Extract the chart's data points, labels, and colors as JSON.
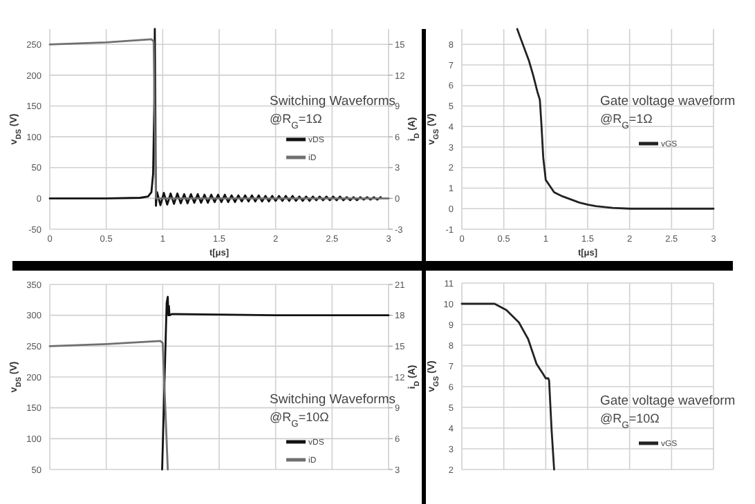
{
  "chart_data": [
    {
      "type": "line",
      "xlabel": "t[μs]",
      "ylabel": "v$_{DS}$ (V)",
      "y2label": "i$_{D}$ (A)",
      "annotations": [
        "Switching Waveforms",
        "@R$_{G}$=1Ω"
      ],
      "xlim": [
        0,
        3
      ],
      "xticks": [
        0,
        0.5,
        1,
        1.5,
        2,
        2.5,
        3
      ],
      "ylim": [
        -50,
        275
      ],
      "yticks": [
        -50,
        0,
        50,
        100,
        150,
        200,
        250
      ],
      "y2lim": [
        -3,
        16.5
      ],
      "y2ticks": [
        -3,
        0,
        3,
        6,
        9,
        12,
        15
      ],
      "grid": true,
      "legend": "right",
      "series": [
        {
          "name": "vDS",
          "color": "#111111",
          "x": [
            0,
            0.5,
            0.8,
            0.87,
            0.9,
            0.915,
            0.925,
            0.93,
            0.94,
            0.95,
            0.98,
            1.01,
            1.04,
            1.07,
            1.1,
            1.13,
            1.16,
            1.19,
            1.22,
            1.25,
            1.28,
            1.31,
            1.34,
            1.37,
            1.4,
            1.43,
            1.46,
            1.49,
            1.52,
            1.55,
            1.58,
            1.61,
            1.64,
            1.67,
            1.7,
            1.73,
            1.76,
            1.79,
            1.82,
            1.85,
            1.88,
            1.91,
            1.94,
            1.97,
            2,
            2.03,
            2.06,
            2.09,
            2.12,
            2.15,
            2.18,
            2.21,
            2.24,
            2.27,
            2.3,
            2.33,
            2.36,
            2.39,
            2.42,
            2.45,
            2.48,
            2.51,
            2.54,
            2.57,
            2.6,
            2.63,
            2.66,
            2.69,
            2.72,
            2.75,
            2.78,
            2.81,
            2.84,
            2.87,
            2.9,
            2.93
          ],
          "values": [
            0,
            0,
            1,
            3,
            10,
            40,
            150,
            275,
            -12,
            10,
            -11,
            9,
            -10,
            8,
            -9,
            8,
            -8,
            7,
            -8,
            7,
            -7,
            7,
            -7,
            6,
            -7,
            6,
            -6,
            6,
            -6,
            6,
            -6,
            5,
            -6,
            5,
            -5,
            5,
            -5,
            5,
            -5,
            5,
            -5,
            4,
            -5,
            4,
            -4,
            4,
            -4,
            4,
            -4,
            4,
            -4,
            3,
            -4,
            3,
            -4,
            3,
            -3,
            3,
            -3,
            3,
            -3,
            3,
            -3,
            3,
            -3,
            2,
            -3,
            2,
            -3,
            2,
            -2,
            2,
            -2,
            2,
            -2,
            2
          ]
        },
        {
          "name": "iD",
          "color": "#707070",
          "axis": "y2",
          "x": [
            0,
            0.5,
            0.9,
            0.92,
            0.93,
            0.94,
            3
          ],
          "values": [
            15,
            15.2,
            15.5,
            15.3,
            7,
            0,
            0
          ]
        }
      ]
    },
    {
      "type": "line",
      "xlabel": "t[μs]",
      "ylabel": "v$_{GS}$ (V)",
      "annotations": [
        "Gate voltage waveform",
        "@R$_{G}$=1Ω"
      ],
      "xlim": [
        0,
        3
      ],
      "xticks": [
        0,
        0.5,
        1,
        1.5,
        2,
        2.5,
        3
      ],
      "ylim": [
        -1,
        8.75
      ],
      "yticks": [
        -1,
        0,
        1,
        2,
        3,
        4,
        5,
        6,
        7,
        8
      ],
      "grid": true,
      "legend": "right",
      "series": [
        {
          "name": "vGS",
          "color": "#222222",
          "x": [
            0.66,
            0.7,
            0.8,
            0.85,
            0.9,
            0.93,
            0.95,
            0.97,
            1,
            1.05,
            1.1,
            1.2,
            1.3,
            1.4,
            1.5,
            1.6,
            1.8,
            2,
            3
          ],
          "values": [
            8.75,
            8.3,
            7.2,
            6.5,
            5.7,
            5.3,
            4,
            2.5,
            1.4,
            1.1,
            0.8,
            0.6,
            0.45,
            0.3,
            0.2,
            0.12,
            0.04,
            0,
            0
          ]
        }
      ]
    },
    {
      "type": "line",
      "ylabel": "v$_{DS}$ (V)",
      "y2label": "i$_{D}$ (A)",
      "annotations": [
        "Switching Waveforms",
        "@R$_{G}$=10Ω"
      ],
      "xlim": [
        0,
        3
      ],
      "xticks": [
        0,
        0.5,
        1,
        1.5,
        2,
        2.5,
        3
      ],
      "tick_labels": "y",
      "ylim": [
        50,
        350
      ],
      "yticks": [
        50,
        100,
        150,
        200,
        250,
        300,
        350
      ],
      "y2lim": [
        3,
        21
      ],
      "y2ticks": [
        3,
        6,
        9,
        12,
        15,
        18,
        21
      ],
      "grid": true,
      "legend": "right",
      "series": [
        {
          "name": "vDS",
          "color": "#111111",
          "x": [
            0.995,
            1.035,
            1.045,
            1.05,
            1.055,
            1.06,
            1.08,
            2,
            3
          ],
          "values": [
            50,
            320,
            330,
            300,
            315,
            300,
            302,
            300,
            300
          ]
        },
        {
          "name": "iD",
          "color": "#707070",
          "axis": "y2",
          "x": [
            0,
            0.5,
            0.98,
            1.0,
            1.045
          ],
          "values": [
            15,
            15.2,
            15.5,
            15.3,
            3
          ]
        }
      ]
    },
    {
      "type": "line",
      "ylabel": "v$_{GS}$ (V)",
      "annotations": [
        "Gate voltage waveform",
        "@R$_{G}$=10Ω"
      ],
      "xlim": [
        0,
        3
      ],
      "xticks": [
        0,
        0.5,
        1,
        1.5,
        2,
        2.5,
        3
      ],
      "tick_labels": "y",
      "ylim": [
        2,
        11
      ],
      "yticks": [
        2,
        3,
        4,
        5,
        6,
        7,
        8,
        9,
        10,
        11
      ],
      "grid": true,
      "legend": "right",
      "series": [
        {
          "name": "vGS",
          "color": "#222222",
          "x": [
            0,
            0.39,
            0.53,
            0.68,
            0.79,
            0.89,
            0.97,
            1,
            1.03,
            1.04,
            1.07,
            1.1
          ],
          "values": [
            10,
            10,
            9.7,
            9.1,
            8.3,
            7.1,
            6.6,
            6.4,
            6.4,
            6.3,
            3.9,
            2
          ]
        }
      ]
    }
  ]
}
